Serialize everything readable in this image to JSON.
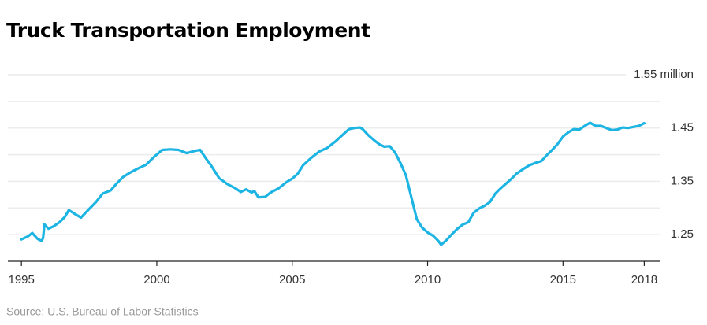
{
  "chart_data": {
    "type": "line",
    "title": "Truck Transportation Employment",
    "source": "Source: U.S. Bureau of Labor Statistics",
    "xlim": [
      1994.5,
      2018.6
    ],
    "xticks": [
      1995,
      2000,
      2005,
      2010,
      2015,
      2018
    ],
    "ylim": [
      1.2,
      1.55
    ],
    "yticks": [
      1.25,
      1.35,
      1.45,
      {
        "value": 1.55,
        "label": "1.55 million"
      }
    ],
    "yticks_minor": [
      1.3,
      1.4,
      1.5
    ],
    "grid": true,
    "series": [
      {
        "name": "Truck transportation employment",
        "color": "#1cb4e3",
        "x": [
          1995.0,
          1995.25,
          1995.4,
          1995.6,
          1995.75,
          1995.8,
          1995.85,
          1996.0,
          1996.2,
          1996.4,
          1996.6,
          1996.75,
          1997.0,
          1997.2,
          1997.5,
          1997.75,
          1998.0,
          1998.3,
          1998.5,
          1998.75,
          1999.0,
          1999.3,
          1999.6,
          1999.9,
          2000.2,
          2000.5,
          2000.8,
          2001.1,
          2001.4,
          2001.6,
          2001.8,
          2002.0,
          2002.3,
          2002.6,
          2002.9,
          2003.1,
          2003.3,
          2003.5,
          2003.6,
          2003.75,
          2004.0,
          2004.2,
          2004.5,
          2004.8,
          2005.0,
          2005.2,
          2005.4,
          2005.7,
          2006.0,
          2006.3,
          2006.6,
          2006.9,
          2007.1,
          2007.3,
          2007.5,
          2007.6,
          2007.8,
          2008.0,
          2008.2,
          2008.4,
          2008.6,
          2008.8,
          2009.0,
          2009.2,
          2009.4,
          2009.6,
          2009.8,
          2010.0,
          2010.2,
          2010.4,
          2010.5,
          2010.7,
          2010.9,
          2011.1,
          2011.3,
          2011.5,
          2011.7,
          2011.9,
          2012.1,
          2012.3,
          2012.5,
          2012.7,
          2012.9,
          2013.1,
          2013.3,
          2013.5,
          2013.75,
          2014.0,
          2014.2,
          2014.4,
          2014.6,
          2014.8,
          2015.0,
          2015.2,
          2015.4,
          2015.6,
          2015.8,
          2016.0,
          2016.2,
          2016.4,
          2016.6,
          2016.8,
          2017.0,
          2017.2,
          2017.4,
          2017.6,
          2017.8,
          2018.0
        ],
        "values": [
          1.241,
          1.247,
          1.253,
          1.242,
          1.238,
          1.244,
          1.269,
          1.261,
          1.266,
          1.273,
          1.283,
          1.296,
          1.288,
          1.282,
          1.298,
          1.311,
          1.327,
          1.333,
          1.345,
          1.358,
          1.366,
          1.374,
          1.381,
          1.396,
          1.409,
          1.41,
          1.409,
          1.403,
          1.407,
          1.409,
          1.394,
          1.38,
          1.356,
          1.345,
          1.337,
          1.33,
          1.335,
          1.329,
          1.332,
          1.32,
          1.321,
          1.329,
          1.337,
          1.349,
          1.355,
          1.364,
          1.38,
          1.394,
          1.406,
          1.413,
          1.425,
          1.439,
          1.448,
          1.45,
          1.451,
          1.448,
          1.437,
          1.428,
          1.42,
          1.415,
          1.416,
          1.404,
          1.384,
          1.361,
          1.32,
          1.279,
          1.263,
          1.254,
          1.248,
          1.238,
          1.231,
          1.24,
          1.251,
          1.261,
          1.269,
          1.273,
          1.291,
          1.299,
          1.304,
          1.311,
          1.327,
          1.337,
          1.346,
          1.355,
          1.365,
          1.372,
          1.38,
          1.385,
          1.388,
          1.399,
          1.409,
          1.42,
          1.434,
          1.442,
          1.448,
          1.447,
          1.454,
          1.46,
          1.454,
          1.454,
          1.45,
          1.446,
          1.447,
          1.451,
          1.45,
          1.452,
          1.454,
          1.459
        ]
      }
    ]
  }
}
